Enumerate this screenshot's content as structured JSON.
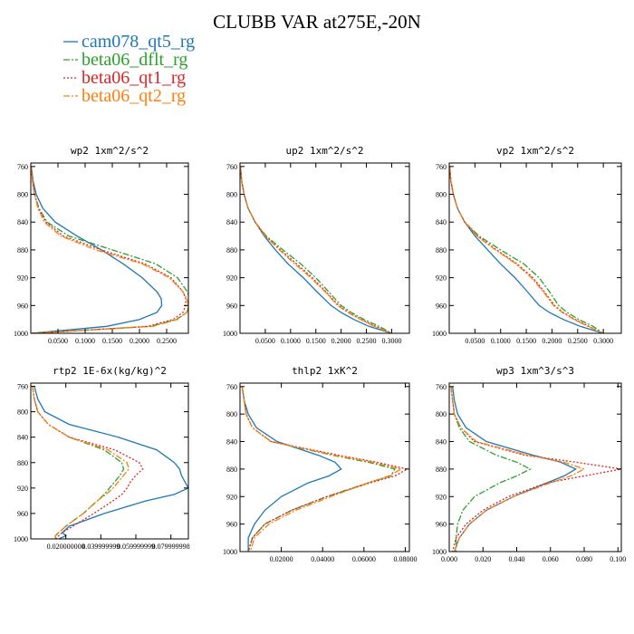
{
  "figure": {
    "title": "CLUBB VAR at275E,-20N",
    "legend": [
      {
        "name": "cam078_qt5_rg",
        "color": "#1f77b4",
        "dash": "solid"
      },
      {
        "name": "beta06_dflt_rg",
        "color": "#2ca02c",
        "dash": "dashdot"
      },
      {
        "name": "beta06_qt1_rg",
        "color": "#d62728",
        "dash": "dotted"
      },
      {
        "name": "beta06_qt2_rg",
        "color": "#ff7f0e",
        "dash": "dashdot"
      }
    ]
  },
  "chart_data": [
    {
      "type": "line",
      "title": "wp2  1xm^2/s^2",
      "xlim": [
        0,
        0.29
      ],
      "ylim": [
        1000,
        755
      ],
      "yinverted": true,
      "xticks": [
        "0.0500",
        "0.1000",
        "0.1500",
        "0.2000",
        "0.2500"
      ],
      "xtick_values": [
        0.05,
        0.1,
        0.15,
        0.2,
        0.25
      ],
      "yticks": [
        "760",
        "800",
        "840",
        "880",
        "920",
        "960",
        "1000"
      ],
      "ytick_values": [
        760,
        800,
        840,
        880,
        920,
        960,
        1000
      ],
      "y": [
        760,
        780,
        800,
        820,
        840,
        860,
        880,
        900,
        920,
        940,
        950,
        960,
        970,
        980,
        990,
        1000
      ],
      "series": [
        {
          "name": "cam078_qt5_rg",
          "x": [
            0.001,
            0.004,
            0.01,
            0.022,
            0.045,
            0.085,
            0.13,
            0.17,
            0.205,
            0.232,
            0.24,
            0.241,
            0.232,
            0.2,
            0.14,
            0.001
          ]
        },
        {
          "name": "beta06_dflt_rg",
          "x": [
            0.001,
            0.003,
            0.007,
            0.015,
            0.03,
            0.07,
            0.15,
            0.23,
            0.27,
            0.288,
            0.292,
            0.292,
            0.287,
            0.268,
            0.22,
            0.002
          ]
        },
        {
          "name": "beta06_qt1_rg",
          "x": [
            0.001,
            0.003,
            0.007,
            0.014,
            0.028,
            0.06,
            0.13,
            0.21,
            0.258,
            0.28,
            0.285,
            0.285,
            0.28,
            0.262,
            0.215,
            0.002
          ]
        },
        {
          "name": "beta06_qt2_rg",
          "x": [
            0.001,
            0.003,
            0.007,
            0.013,
            0.025,
            0.055,
            0.12,
            0.205,
            0.255,
            0.28,
            0.287,
            0.29,
            0.287,
            0.27,
            0.225,
            0.002
          ]
        }
      ]
    },
    {
      "type": "line",
      "title": "up2  1xm^2/s^2",
      "xlim": [
        0,
        0.335
      ],
      "ylim": [
        1000,
        755
      ],
      "yinverted": true,
      "xticks": [
        "0.0500",
        "0.1000",
        "0.1500",
        "0.2000",
        "0.2500",
        "0.3000"
      ],
      "xtick_values": [
        0.05,
        0.1,
        0.15,
        0.2,
        0.25,
        0.3
      ],
      "yticks": [
        "760",
        "800",
        "840",
        "880",
        "920",
        "960",
        "1000"
      ],
      "ytick_values": [
        760,
        800,
        840,
        880,
        920,
        960,
        1000
      ],
      "y": [
        760,
        780,
        800,
        820,
        840,
        860,
        880,
        900,
        920,
        940,
        960,
        970,
        980,
        990,
        1000
      ],
      "series": [
        {
          "name": "cam078_qt5_rg",
          "x": [
            0.001,
            0.003,
            0.008,
            0.016,
            0.03,
            0.048,
            0.07,
            0.095,
            0.125,
            0.152,
            0.18,
            0.2,
            0.225,
            0.255,
            0.3
          ]
        },
        {
          "name": "beta06_dflt_rg",
          "x": [
            0.001,
            0.003,
            0.008,
            0.016,
            0.03,
            0.052,
            0.085,
            0.12,
            0.15,
            0.175,
            0.2,
            0.22,
            0.245,
            0.275,
            0.3
          ]
        },
        {
          "name": "beta06_qt1_rg",
          "x": [
            0.001,
            0.003,
            0.008,
            0.016,
            0.03,
            0.05,
            0.08,
            0.112,
            0.143,
            0.17,
            0.195,
            0.215,
            0.24,
            0.268,
            0.3
          ]
        },
        {
          "name": "beta06_qt2_rg",
          "x": [
            0.001,
            0.003,
            0.008,
            0.016,
            0.03,
            0.05,
            0.078,
            0.108,
            0.14,
            0.168,
            0.193,
            0.213,
            0.238,
            0.265,
            0.3
          ]
        }
      ]
    },
    {
      "type": "line",
      "title": "vp2  1xm^2/s^2",
      "xlim": [
        0,
        0.335
      ],
      "ylim": [
        1000,
        755
      ],
      "yinverted": true,
      "xticks": [
        "0.0500",
        "0.1000",
        "0.1500",
        "0.2000",
        "0.2500",
        "0.3000"
      ],
      "xtick_values": [
        0.05,
        0.1,
        0.15,
        0.2,
        0.25,
        0.3
      ],
      "yticks": [
        "760",
        "800",
        "840",
        "880",
        "920",
        "960",
        "1000"
      ],
      "ytick_values": [
        760,
        800,
        840,
        880,
        920,
        960,
        1000
      ],
      "y": [
        760,
        780,
        800,
        820,
        840,
        860,
        880,
        900,
        920,
        940,
        960,
        970,
        980,
        990,
        1000
      ],
      "series": [
        {
          "name": "cam078_qt5_rg",
          "x": [
            0.001,
            0.003,
            0.008,
            0.016,
            0.03,
            0.05,
            0.075,
            0.1,
            0.128,
            0.152,
            0.175,
            0.195,
            0.222,
            0.255,
            0.3
          ]
        },
        {
          "name": "beta06_dflt_rg",
          "x": [
            0.001,
            0.003,
            0.008,
            0.016,
            0.03,
            0.058,
            0.1,
            0.145,
            0.175,
            0.195,
            0.213,
            0.23,
            0.252,
            0.28,
            0.3
          ]
        },
        {
          "name": "beta06_qt1_rg",
          "x": [
            0.001,
            0.003,
            0.008,
            0.016,
            0.03,
            0.055,
            0.092,
            0.132,
            0.163,
            0.185,
            0.205,
            0.222,
            0.245,
            0.272,
            0.3
          ]
        },
        {
          "name": "beta06_qt2_rg",
          "x": [
            0.001,
            0.003,
            0.008,
            0.016,
            0.03,
            0.054,
            0.09,
            0.13,
            0.16,
            0.183,
            0.203,
            0.22,
            0.243,
            0.27,
            0.3
          ]
        }
      ]
    },
    {
      "type": "line",
      "title": "rtp2  1E-6x(kg/kg)^2",
      "xlim": [
        0,
        0.09
      ],
      "ylim": [
        1000,
        755
      ],
      "yinverted": true,
      "xticks": [
        "0.020000000",
        "0.039999999",
        "0.059999999",
        "0.079999998"
      ],
      "xtick_values": [
        0.02,
        0.04,
        0.06,
        0.08
      ],
      "yticks": [
        "760",
        "800",
        "840",
        "880",
        "920",
        "960",
        "1000"
      ],
      "ytick_values": [
        760,
        800,
        840,
        880,
        920,
        960,
        1000
      ],
      "y": [
        760,
        780,
        800,
        820,
        840,
        860,
        880,
        890,
        900,
        910,
        920,
        930,
        940,
        960,
        980,
        990,
        995,
        1000
      ],
      "series": [
        {
          "name": "cam078_qt5_rg",
          "x": [
            0.002,
            0.004,
            0.008,
            0.022,
            0.05,
            0.072,
            0.082,
            0.085,
            0.086,
            0.088,
            0.09,
            0.082,
            0.066,
            0.042,
            0.022,
            0.018,
            0.02,
            0.016
          ]
        },
        {
          "name": "beta06_dflt_rg",
          "x": [
            0.001,
            0.002,
            0.004,
            0.01,
            0.022,
            0.042,
            0.052,
            0.053,
            0.051,
            0.048,
            0.045,
            0.042,
            0.038,
            0.03,
            0.02,
            0.016,
            0.014,
            0.014
          ]
        },
        {
          "name": "beta06_qt1_rg",
          "x": [
            0.001,
            0.002,
            0.004,
            0.01,
            0.022,
            0.048,
            0.062,
            0.064,
            0.06,
            0.057,
            0.055,
            0.052,
            0.047,
            0.036,
            0.024,
            0.018,
            0.016,
            0.014
          ]
        },
        {
          "name": "beta06_qt2_rg",
          "x": [
            0.001,
            0.002,
            0.004,
            0.01,
            0.022,
            0.044,
            0.055,
            0.056,
            0.053,
            0.05,
            0.047,
            0.043,
            0.038,
            0.03,
            0.02,
            0.016,
            0.014,
            0.014
          ]
        }
      ]
    },
    {
      "type": "line",
      "title": "thlp2  1xK^2",
      "xlim": [
        0,
        0.082
      ],
      "ylim": [
        1000,
        755
      ],
      "yinverted": true,
      "xticks": [
        "0.02000",
        "0.04000",
        "0.06000",
        "0.08000"
      ],
      "xtick_values": [
        0.02,
        0.04,
        0.06,
        0.08
      ],
      "yticks": [
        "760",
        "800",
        "840",
        "880",
        "920",
        "960",
        "1000"
      ],
      "ytick_values": [
        760,
        800,
        840,
        880,
        920,
        960,
        1000
      ],
      "y": [
        760,
        780,
        800,
        820,
        840,
        860,
        870,
        880,
        890,
        900,
        920,
        940,
        960,
        980,
        1000
      ],
      "series": [
        {
          "name": "cam078_qt5_rg",
          "x": [
            0.001,
            0.002,
            0.004,
            0.008,
            0.018,
            0.038,
            0.046,
            0.049,
            0.043,
            0.033,
            0.02,
            0.012,
            0.007,
            0.004,
            0.004
          ]
        },
        {
          "name": "beta06_dflt_rg",
          "x": [
            0.001,
            0.002,
            0.003,
            0.006,
            0.015,
            0.045,
            0.062,
            0.075,
            0.073,
            0.062,
            0.042,
            0.025,
            0.012,
            0.006,
            0.004
          ]
        },
        {
          "name": "beta06_qt1_rg",
          "x": [
            0.001,
            0.002,
            0.003,
            0.006,
            0.015,
            0.048,
            0.066,
            0.081,
            0.075,
            0.063,
            0.042,
            0.025,
            0.012,
            0.006,
            0.004
          ]
        },
        {
          "name": "beta06_qt2_rg",
          "x": [
            0.001,
            0.002,
            0.003,
            0.006,
            0.015,
            0.046,
            0.064,
            0.078,
            0.072,
            0.062,
            0.044,
            0.027,
            0.014,
            0.007,
            0.005
          ]
        }
      ]
    },
    {
      "type": "line",
      "title": "wp3  1xm^3/s^3",
      "xlim": [
        0,
        0.102
      ],
      "ylim": [
        1000,
        755
      ],
      "yinverted": true,
      "xticks": [
        "0.000",
        "0.020",
        "0.040",
        "0.060",
        "0.080",
        "0.100"
      ],
      "xtick_values": [
        0.0,
        0.02,
        0.04,
        0.06,
        0.08,
        0.1
      ],
      "yticks": [
        "760",
        "800",
        "840",
        "880",
        "920",
        "960",
        "1000"
      ],
      "ytick_values": [
        760,
        800,
        840,
        880,
        920,
        960,
        1000
      ],
      "y": [
        760,
        780,
        800,
        820,
        840,
        860,
        870,
        880,
        890,
        900,
        920,
        940,
        960,
        980,
        1000
      ],
      "series": [
        {
          "name": "cam078_qt5_rg",
          "x": [
            0.002,
            0.003,
            0.005,
            0.01,
            0.022,
            0.05,
            0.066,
            0.075,
            0.068,
            0.058,
            0.038,
            0.022,
            0.012,
            0.006,
            0.003
          ]
        },
        {
          "name": "beta06_dflt_rg",
          "x": [
            0.001,
            0.002,
            0.003,
            0.006,
            0.012,
            0.028,
            0.04,
            0.048,
            0.04,
            0.03,
            0.015,
            0.008,
            0.005,
            0.004,
            0.004
          ]
        },
        {
          "name": "beta06_qt1_rg",
          "x": [
            0.001,
            0.002,
            0.003,
            0.007,
            0.015,
            0.045,
            0.075,
            0.102,
            0.08,
            0.058,
            0.035,
            0.02,
            0.01,
            0.004,
            0.002
          ]
        },
        {
          "name": "beta06_qt2_rg",
          "x": [
            0.001,
            0.002,
            0.003,
            0.007,
            0.016,
            0.047,
            0.068,
            0.08,
            0.072,
            0.06,
            0.038,
            0.022,
            0.012,
            0.006,
            0.003
          ]
        }
      ]
    }
  ]
}
